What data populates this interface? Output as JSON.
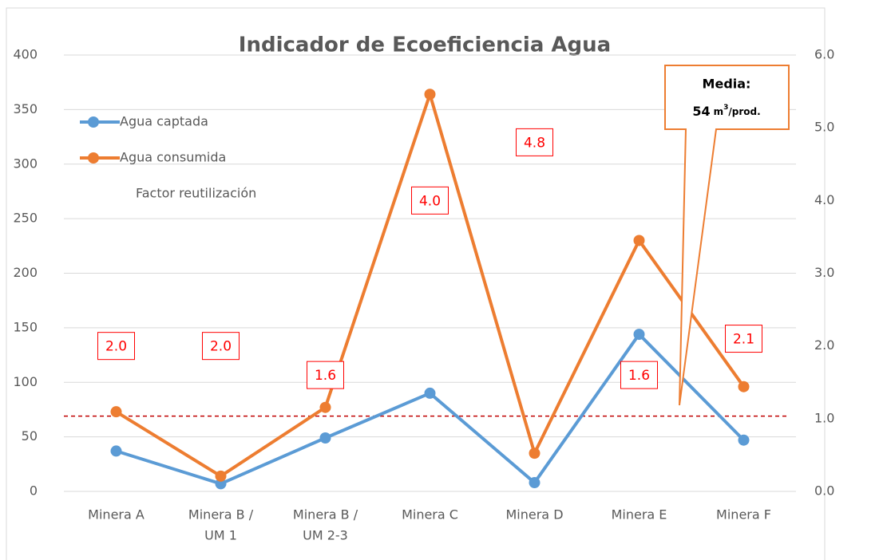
{
  "chart_data": {
    "type": "line",
    "title": "Indicador de Ecoeficiencia Agua",
    "categories": [
      [
        "Minera A"
      ],
      [
        "Minera B /",
        "UM 1"
      ],
      [
        "Minera B /",
        "UM 2-3"
      ],
      [
        "Minera C"
      ],
      [
        "Minera D"
      ],
      [
        "Minera E"
      ],
      [
        "Minera F"
      ]
    ],
    "series": [
      {
        "name": "Agua captada",
        "color": "#5b9bd5",
        "values": [
          37,
          7,
          49,
          90,
          8,
          144,
          47
        ]
      },
      {
        "name": "Agua consumida",
        "color": "#ed7d31",
        "values": [
          73,
          14,
          77,
          364,
          35,
          230,
          96
        ]
      },
      {
        "name": "Factor reutilización",
        "axis": "y2",
        "color": "#ff0000",
        "values": [
          2.0,
          2.0,
          1.6,
          4.0,
          4.8,
          1.6,
          2.1
        ],
        "value_labels": [
          "2.0",
          "2.0",
          "1.6",
          "4.0",
          "4.8",
          "1.6",
          "2.1"
        ]
      }
    ],
    "ylim": [
      0,
      400
    ],
    "yticks": [
      0,
      50,
      100,
      150,
      200,
      250,
      300,
      350,
      400
    ],
    "y2lim": [
      0,
      6
    ],
    "y2ticks": [
      {
        "value": 0,
        "label": "0.0"
      },
      {
        "value": 1,
        "label": "1.0"
      },
      {
        "value": 2,
        "label": "2.0"
      },
      {
        "value": 3,
        "label": "3.0"
      },
      {
        "value": 4,
        "label": "4.0"
      },
      {
        "value": 5,
        "label": "5.0"
      },
      {
        "value": 6,
        "label": "6.0"
      }
    ],
    "grid": true,
    "legend": "upper left",
    "reference_line": {
      "value": 69,
      "color": "#c00000"
    },
    "annotation": {
      "title": "Media:",
      "value": "54",
      "unit": "m",
      "sup": "3",
      "unit_rest": "/prod."
    }
  }
}
